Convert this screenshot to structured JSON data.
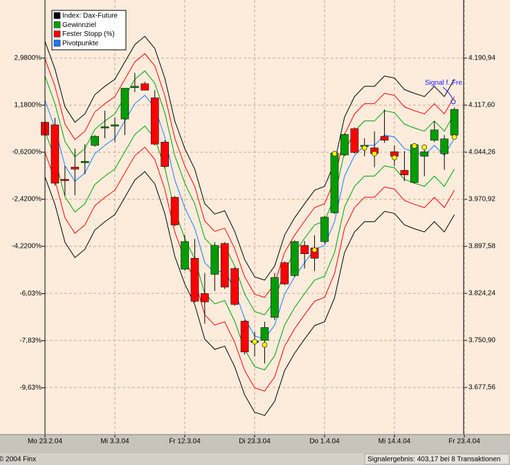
{
  "chart_data": {
    "type": "candlestick",
    "categories": [
      "Mo 23.2.04",
      null,
      null,
      null,
      null,
      null,
      null,
      "Mi 3.3.04",
      null,
      null,
      null,
      null,
      null,
      null,
      "Fr 12.3.04",
      null,
      null,
      null,
      null,
      null,
      null,
      "Di 23.3.04",
      null,
      null,
      null,
      null,
      null,
      null,
      "Do 1.4.04",
      null,
      null,
      null,
      null,
      null,
      null,
      "Mi 14.4.04",
      null,
      null,
      null,
      null,
      null,
      null,
      "Fr 23.4.04"
    ],
    "series": [
      {
        "name": "Index: Dax-Future",
        "color": "#000000",
        "up_color": "#009c00",
        "down_color": "#ff0000",
        "open": [
          4091,
          4087,
          4002,
          4021,
          4028,
          4055,
          4082,
          4085,
          4096,
          4145,
          4151,
          4129,
          4060,
          3974,
          3862,
          3879,
          3824,
          3854,
          3902,
          3863,
          3781,
          3748,
          3751,
          3787,
          3872,
          3852,
          3899,
          3895,
          3905,
          3950,
          4040,
          4081,
          4053,
          4051,
          4069,
          4045,
          4016,
          3997,
          4038,
          4063,
          4042,
          4071,
          null
        ],
        "high": [
          4093,
          4098,
          4023,
          4050,
          4057,
          4071,
          4109,
          4098,
          4144,
          4168,
          4154,
          4141,
          4063,
          3976,
          3915,
          3909,
          3856,
          3904,
          3904,
          3865,
          3783,
          3764,
          3780,
          3856,
          3874,
          3907,
          3906,
          3915,
          3945,
          4045,
          4074,
          4083,
          4066,
          4077,
          4111,
          4055,
          4046,
          4058,
          4048,
          4093,
          4071,
          4114,
          null
        ],
        "low": [
          4069,
          3992,
          3977,
          3977,
          4010,
          4053,
          4066,
          4060,
          4071,
          4138,
          4141,
          4055,
          4019,
          3929,
          3860,
          3810,
          3777,
          3828,
          3831,
          3805,
          3729,
          3726,
          3715,
          3783,
          3837,
          3850,
          3863,
          3859,
          3902,
          3948,
          4038,
          4042,
          4038,
          4021,
          4059,
          4023,
          3999,
          3995,
          4007,
          4060,
          4017,
          4066,
          null
        ],
        "close": [
          4071,
          3996,
          4000,
          4018,
          4030,
          4069,
          4084,
          4087,
          4144,
          4147,
          4141,
          4057,
          4022,
          3931,
          3905,
          3812,
          3811,
          3899,
          3834,
          3807,
          3733,
          3750,
          3771,
          3849,
          3839,
          3905,
          3886,
          3879,
          3943,
          4043,
          4072,
          4044,
          4055,
          4042,
          4063,
          4038,
          4009,
          4056,
          4045,
          4079,
          4065,
          4111,
          null
        ],
        "upper": [
          4217,
          4174,
          4115,
          4091,
          4104,
          4134,
          4147,
          4158,
          4185,
          4212,
          4225,
          4206,
          4160,
          4093,
          4050,
          4018,
          3964,
          3948,
          3953,
          3921,
          3877,
          3850,
          3845,
          3867,
          3915,
          3942,
          3964,
          3985,
          3991,
          4028,
          4099,
          4131,
          4147,
          4147,
          4163,
          4160,
          4142,
          4136,
          4131,
          4147,
          4131,
          4158,
          null
        ],
        "lower": [
          4006,
          3963,
          3904,
          3880,
          3893,
          3923,
          3936,
          3947,
          3974,
          4001,
          4014,
          3995,
          3949,
          3882,
          3839,
          3807,
          3753,
          3737,
          3742,
          3710,
          3666,
          3639,
          3634,
          3656,
          3704,
          3731,
          3753,
          3774,
          3780,
          3817,
          3888,
          3920,
          3936,
          3936,
          3952,
          3949,
          3931,
          3925,
          3920,
          3936,
          3920,
          3947,
          null
        ]
      },
      {
        "name": "Gewinnziel",
        "color": "#00a000",
        "upper": [
          4163,
          4120,
          4061,
          4037,
          4050,
          4080,
          4093,
          4104,
          4131,
          4158,
          4171,
          4152,
          4106,
          4039,
          3996,
          3964,
          3910,
          3894,
          3899,
          3867,
          3823,
          3796,
          3791,
          3813,
          3861,
          3888,
          3910,
          3931,
          3937,
          3974,
          4045,
          4077,
          4093,
          4093,
          4109,
          4106,
          4088,
          4082,
          4077,
          4093,
          4077,
          4104,
          null
        ],
        "lower": [
          4077,
          4034,
          3975,
          3951,
          3964,
          3994,
          4007,
          4018,
          4045,
          4072,
          4085,
          4066,
          4020,
          3953,
          3910,
          3878,
          3824,
          3808,
          3813,
          3781,
          3737,
          3710,
          3705,
          3727,
          3775,
          3802,
          3824,
          3845,
          3851,
          3888,
          3959,
          3991,
          4007,
          4007,
          4023,
          4020,
          4002,
          3996,
          3991,
          4007,
          3991,
          4018,
          null
        ]
      },
      {
        "name": "Fester Stopp (%)",
        "color": "#ff0000",
        "upper": [
          4190,
          4147,
          4088,
          4064,
          4077,
          4107,
          4120,
          4131,
          4158,
          4185,
          4198,
          4179,
          4133,
          4066,
          4023,
          3991,
          3937,
          3921,
          3926,
          3894,
          3850,
          3823,
          3818,
          3840,
          3888,
          3915,
          3937,
          3958,
          3964,
          4001,
          4072,
          4104,
          4120,
          4120,
          4136,
          4133,
          4115,
          4109,
          4104,
          4120,
          4104,
          4131,
          null
        ],
        "lower": [
          4044,
          4001,
          3942,
          3918,
          3931,
          3961,
          3974,
          3985,
          4012,
          4039,
          4052,
          4033,
          3987,
          3920,
          3877,
          3845,
          3791,
          3775,
          3780,
          3748,
          3704,
          3677,
          3672,
          3694,
          3742,
          3769,
          3791,
          3812,
          3818,
          3855,
          3926,
          3958,
          3974,
          3974,
          3990,
          3987,
          3969,
          3963,
          3958,
          3974,
          3958,
          3985,
          null
        ]
      },
      {
        "name": "Pivotpunkte",
        "color": "#1a7cff",
        "signal_color": "#ffff00",
        "values": [
          4125,
          4082,
          4023,
          3999,
          4012,
          4042,
          4055,
          4066,
          4093,
          4120,
          4133,
          4114,
          4068,
          4001,
          3958,
          3926,
          3872,
          3856,
          3861,
          3829,
          3785,
          3758,
          3753,
          3775,
          3823,
          3850,
          3872,
          3893,
          3899,
          3936,
          4007,
          4039,
          4055,
          4055,
          4071,
          4068,
          4050,
          4044,
          4039,
          4055,
          4039,
          4066,
          null
        ],
        "signals": [
          null,
          null,
          null,
          null,
          null,
          null,
          null,
          null,
          null,
          null,
          null,
          null,
          null,
          null,
          null,
          null,
          null,
          null,
          null,
          null,
          null,
          3749,
          3744,
          null,
          null,
          null,
          null,
          3892,
          null,
          4042,
          null,
          null,
          4051,
          4042,
          null,
          4036,
          null,
          4054,
          4052,
          null,
          null,
          4068,
          null
        ]
      }
    ],
    "ylim": [
      3604.22,
      4272.91
    ],
    "yticks": [
      {
        "value": 4190.94,
        "label": "4.190,94"
      },
      {
        "value": 4117.6,
        "label": "4.117,60"
      },
      {
        "value": 4044.26,
        "label": "4.044,26"
      },
      {
        "value": 3970.92,
        "label": "3.970,92"
      },
      {
        "value": 3897.58,
        "label": "3.897,58"
      },
      {
        "value": 3824.24,
        "label": "3.824,24"
      },
      {
        "value": 3750.9,
        "label": "3.750,90"
      },
      {
        "value": 3677.56,
        "label": "3.677,56"
      }
    ],
    "y2lim": [
      -11.42,
      4.99
    ],
    "y2ticks": [
      {
        "value": 2.98,
        "label": "2,9800%"
      },
      {
        "value": 1.18,
        "label": "1,1800%"
      },
      {
        "value": -0.62,
        "label": "-0,6200%"
      },
      {
        "value": -2.42,
        "label": "-2,4200%"
      },
      {
        "value": -4.22,
        "label": "-4,2200%"
      },
      {
        "value": -6.03,
        "label": "-6,03%"
      },
      {
        "value": -7.83,
        "label": "-7,83%"
      },
      {
        "value": -9.63,
        "label": "-9,63%"
      }
    ],
    "annotation": "Signal f. Fre",
    "grid": true,
    "legend": "upper left"
  },
  "footer": {
    "copyright": "© 2004 Finx",
    "result": "Signalergebnis: 403,17 bei 8 Transaktionen"
  }
}
